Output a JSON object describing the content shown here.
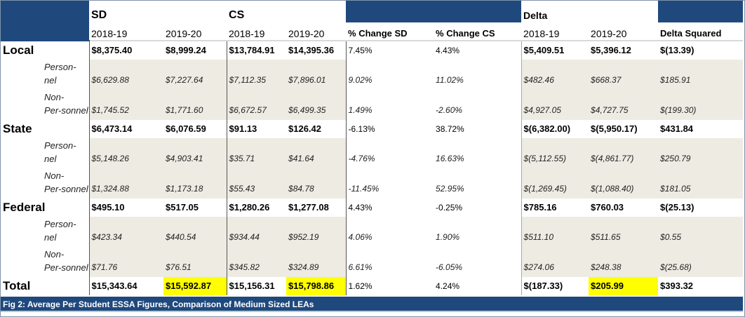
{
  "header": {
    "group_sd": "SD",
    "group_cs": "CS",
    "group_delta": "Delta",
    "columns": [
      "2018-19",
      "2019-20",
      "2018-19",
      "2019-20",
      "% Change SD",
      "% Change CS",
      "2018-19",
      "2019-20",
      "Delta Squared"
    ]
  },
  "rows": [
    {
      "label": "Local",
      "type": "main",
      "values": [
        "$8,375.40",
        "$8,999.24",
        "$13,784.91",
        "$14,395.36",
        "7.45%",
        "4.43%",
        "$5,409.51",
        "$5,396.12",
        "$(13.39)"
      ]
    },
    {
      "label": "Person-nel",
      "type": "sub",
      "values": [
        "$6,629.88",
        "$7,227.64",
        "$7,112.35",
        "$7,896.01",
        "9.02%",
        "11.02%",
        "$482.46",
        "$668.37",
        "$185.91"
      ]
    },
    {
      "label": "Non-Per-sonnel",
      "type": "sub",
      "values": [
        "$1,745.52",
        "$1,771.60",
        "$6,672.57",
        "$6,499.35",
        "1.49%",
        "-2.60%",
        "$4,927.05",
        "$4,727.75",
        "$(199.30)"
      ]
    },
    {
      "label": "State",
      "type": "main",
      "values": [
        "$6,473.14",
        "$6,076.59",
        "$91.13",
        "$126.42",
        "-6.13%",
        "38.72%",
        "$(6,382.00)",
        "$(5,950.17)",
        "$431.84"
      ]
    },
    {
      "label": "Person-nel",
      "type": "sub",
      "values": [
        "$5,148.26",
        "$4,903.41",
        "$35.71",
        "$41.64",
        "-4.76%",
        "16.63%",
        "$(5,112.55)",
        "$(4,861.77)",
        "$250.79"
      ]
    },
    {
      "label": "Non-Per-sonnel",
      "type": "sub",
      "values": [
        "$1,324.88",
        "$1,173.18",
        "$55.43",
        "$84.78",
        "-11.45%",
        "52.95%",
        "$(1,269.45)",
        "$(1,088.40)",
        "$181.05"
      ]
    },
    {
      "label": "Federal",
      "type": "main",
      "values": [
        "$495.10",
        "$517.05",
        "$1,280.26",
        "$1,277.08",
        "4.43%",
        "-0.25%",
        "$785.16",
        "$760.03",
        "$(25.13)"
      ]
    },
    {
      "label": "Person-nel",
      "type": "sub",
      "values": [
        "$423.34",
        "$440.54",
        "$934.44",
        "$952.19",
        "4.06%",
        "1.90%",
        "$511.10",
        "$511.65",
        "$0.55"
      ]
    },
    {
      "label": "Non-Per-sonnel",
      "type": "sub",
      "values": [
        "$71.76",
        "$76.51",
        "$345.82",
        "$324.89",
        "6.61%",
        "-6.05%",
        "$274.06",
        "$248.38",
        "$(25.68)"
      ]
    },
    {
      "label": "Total",
      "type": "main",
      "values": [
        "$15,343.64",
        "$15,592.87",
        "$15,156.31",
        "$15,798.86",
        "1.62%",
        "4.24%",
        "$(187.33)",
        "$205.99",
        "$393.32"
      ],
      "highlight": [
        1,
        3,
        7
      ]
    }
  ],
  "caption": "Fig 2: Average Per Student ESSA Figures, Comparison of Medium Sized LEAs",
  "colors": {
    "header_blue": "#1f497d",
    "highlight": "#ffff00",
    "shade": "#eeebe3"
  }
}
